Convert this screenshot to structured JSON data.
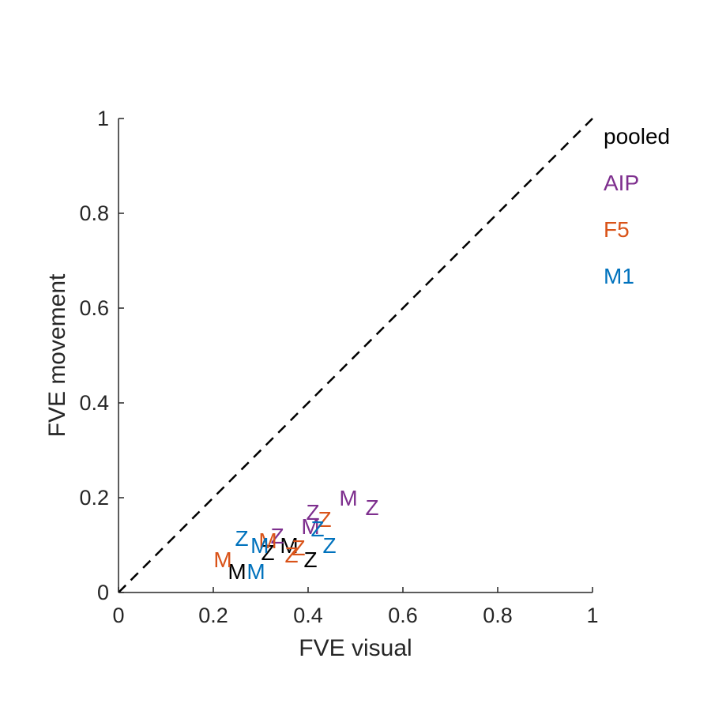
{
  "chart_data": {
    "type": "scatter",
    "xlabel": "FVE visual",
    "ylabel": "FVE movement",
    "xlim": [
      0,
      1
    ],
    "ylim": [
      0,
      1
    ],
    "xticks": [
      0,
      0.2,
      0.4,
      0.6,
      0.8,
      1
    ],
    "yticks": [
      0,
      0.2,
      0.4,
      0.6,
      0.8,
      1
    ],
    "xtick_labels": [
      "0",
      "0.2",
      "0.4",
      "0.6",
      "0.8",
      "1"
    ],
    "ytick_labels": [
      "0",
      "0.2",
      "0.4",
      "0.6",
      "0.8",
      "1"
    ],
    "grid": false,
    "reference_line": {
      "from": [
        0,
        0
      ],
      "to": [
        1,
        1
      ],
      "style": "dashed",
      "color": "#000000"
    },
    "legend_position": "right",
    "series": [
      {
        "name": "pooled",
        "color": "#000000",
        "points": [
          {
            "label": "M",
            "x": 0.25,
            "y": 0.045
          },
          {
            "label": "M",
            "x": 0.36,
            "y": 0.1
          },
          {
            "label": "Z",
            "x": 0.315,
            "y": 0.085
          },
          {
            "label": "Z",
            "x": 0.405,
            "y": 0.07
          }
        ]
      },
      {
        "name": "AIP",
        "color": "#7E2F8E",
        "points": [
          {
            "label": "M",
            "x": 0.485,
            "y": 0.2
          },
          {
            "label": "Z",
            "x": 0.535,
            "y": 0.18
          },
          {
            "label": "Z",
            "x": 0.41,
            "y": 0.17
          },
          {
            "label": "M",
            "x": 0.405,
            "y": 0.14
          },
          {
            "label": "Z",
            "x": 0.335,
            "y": 0.12
          }
        ]
      },
      {
        "name": "F5",
        "color": "#D95319",
        "points": [
          {
            "label": "M",
            "x": 0.22,
            "y": 0.07
          },
          {
            "label": "Z",
            "x": 0.435,
            "y": 0.155
          },
          {
            "label": "M",
            "x": 0.315,
            "y": 0.11
          },
          {
            "label": "Z",
            "x": 0.365,
            "y": 0.08
          },
          {
            "label": "Z",
            "x": 0.38,
            "y": 0.095
          }
        ]
      },
      {
        "name": "M1",
        "color": "#0072BD",
        "points": [
          {
            "label": "Z",
            "x": 0.26,
            "y": 0.115
          },
          {
            "label": "M",
            "x": 0.298,
            "y": 0.1
          },
          {
            "label": "M",
            "x": 0.29,
            "y": 0.045
          },
          {
            "label": "Z",
            "x": 0.42,
            "y": 0.135
          },
          {
            "label": "Z",
            "x": 0.445,
            "y": 0.1
          }
        ]
      }
    ]
  }
}
